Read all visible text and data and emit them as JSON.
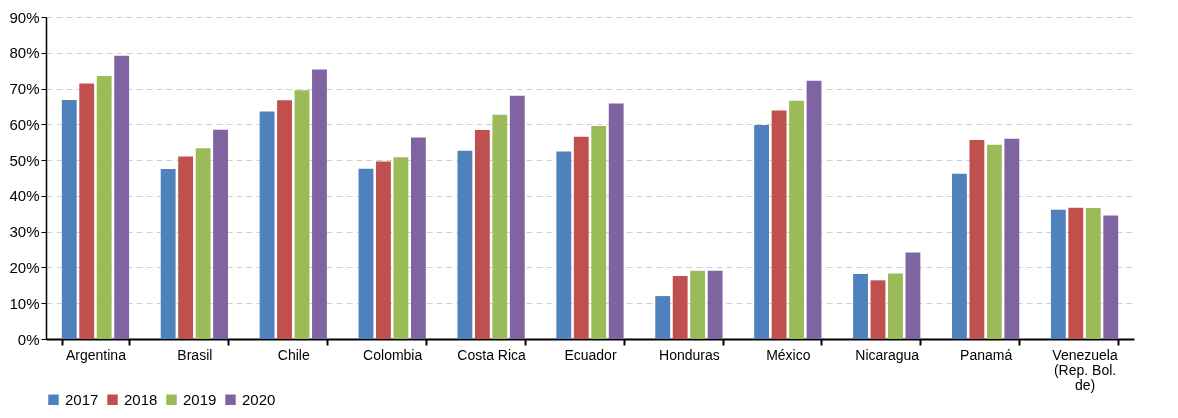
{
  "chart_data": {
    "type": "bar",
    "categories": [
      "Argentina",
      "Brasil",
      "Chile",
      "Colombia",
      "Costa Rica",
      "Ecuador",
      "Honduras",
      "México",
      "Nicaragua",
      "Panamá",
      "Venezuela (Rep. Bol. de)"
    ],
    "series": [
      {
        "name": "2017",
        "color": "#4f81bd",
        "values": [
          66.8,
          47.5,
          63.6,
          47.6,
          52.6,
          52.4,
          12.0,
          59.8,
          18.2,
          46.2,
          36.1
        ]
      },
      {
        "name": "2018",
        "color": "#c0504d",
        "values": [
          71.4,
          51.0,
          66.7,
          49.6,
          58.4,
          56.5,
          17.6,
          63.9,
          16.4,
          55.6,
          36.7
        ]
      },
      {
        "name": "2019",
        "color": "#9bbb59",
        "values": [
          73.5,
          53.3,
          69.5,
          50.8,
          62.7,
          59.5,
          19.1,
          66.6,
          18.3,
          54.3,
          36.6
        ]
      },
      {
        "name": "2020",
        "color": "#8064a2",
        "values": [
          79.2,
          58.5,
          75.3,
          56.3,
          68.0,
          65.8,
          19.1,
          72.2,
          24.2,
          56.0,
          34.5
        ]
      }
    ],
    "ylim": [
      0,
      90
    ],
    "yticks": [
      {
        "value": 0,
        "label": "0%"
      },
      {
        "value": 10,
        "label": "10%"
      },
      {
        "value": 20,
        "label": "20%"
      },
      {
        "value": 30,
        "label": "30%"
      },
      {
        "value": 40,
        "label": "40%"
      },
      {
        "value": 50,
        "label": "50%"
      },
      {
        "value": 60,
        "label": "60%"
      },
      {
        "value": 70,
        "label": "70%"
      },
      {
        "value": 80,
        "label": "80%"
      },
      {
        "value": 90,
        "label": "90%"
      }
    ],
    "grid": "y",
    "legend": "bottom"
  }
}
